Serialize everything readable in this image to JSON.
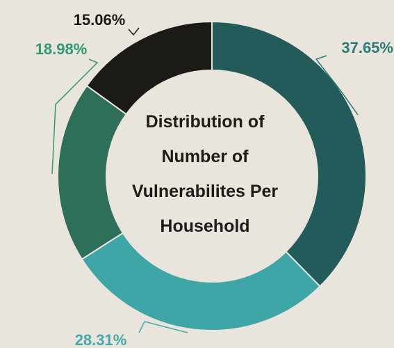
{
  "chart_data": {
    "type": "donut",
    "title": "Distribution of Number of Vulnerabilites Per Household",
    "values": [
      37.65,
      28.31,
      18.98,
      15.06
    ],
    "value_labels": [
      "37.65%",
      "28.31%",
      "18.98%",
      "15.06%"
    ],
    "colors": [
      "#235a5a",
      "#3fa6a8",
      "#2d6f58",
      "#1b1a17"
    ],
    "label_colors": [
      "#2a7a7a",
      "#43a9ab",
      "#2e9a74",
      "#1b1a17"
    ]
  }
}
